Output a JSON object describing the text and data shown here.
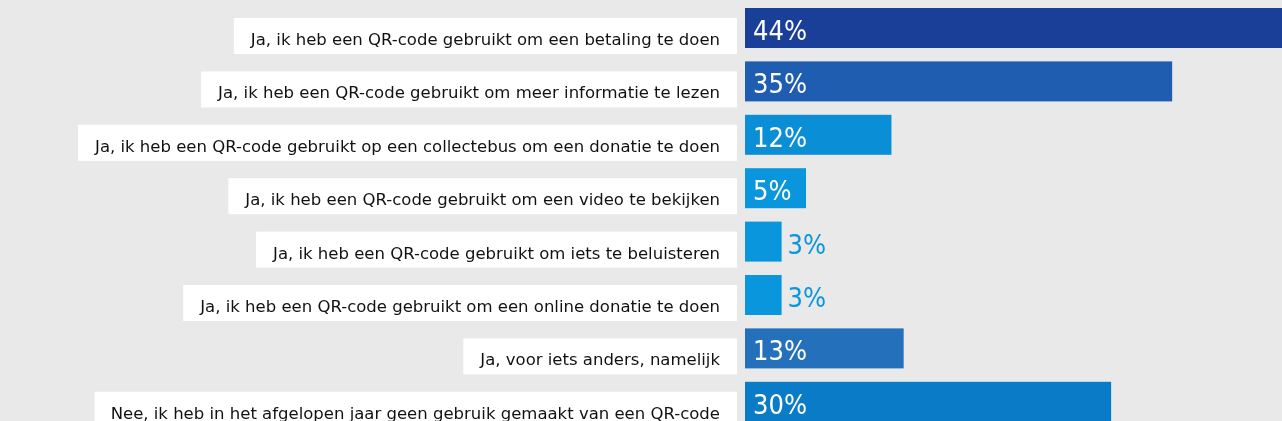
{
  "chart_data": {
    "type": "bar",
    "orientation": "horizontal",
    "categories": [
      "Ja, ik heb een QR-code gebruikt om een betaling te doen",
      "Ja, ik heb een QR-code gebruikt om meer informatie te lezen",
      "Ja, ik heb een QR-code gebruikt op een collectebus om een donatie te doen",
      "Ja, ik heb een QR-code gebruikt om een video te bekijken",
      "Ja, ik heb een QR-code gebruikt om iets te beluisteren",
      "Ja, ik heb een QR-code gebruikt om een online donatie te doen",
      "Ja, voor iets anders, namelijk",
      "Nee, ik heb in het afgelopen jaar geen gebruik gemaakt van een QR-code"
    ],
    "values": [
      44,
      35,
      12,
      5,
      3,
      3,
      13,
      30
    ],
    "colors": [
      "#1a3f98",
      "#1f5db0",
      "#0a8ed6",
      "#0a96dc",
      "#0a96dc",
      "#0a96dc",
      "#2470bb",
      "#0a7cc7"
    ],
    "value_labels": [
      "44%",
      "35%",
      "12%",
      "5%",
      "3%",
      "3%",
      "13%",
      "30%"
    ]
  }
}
